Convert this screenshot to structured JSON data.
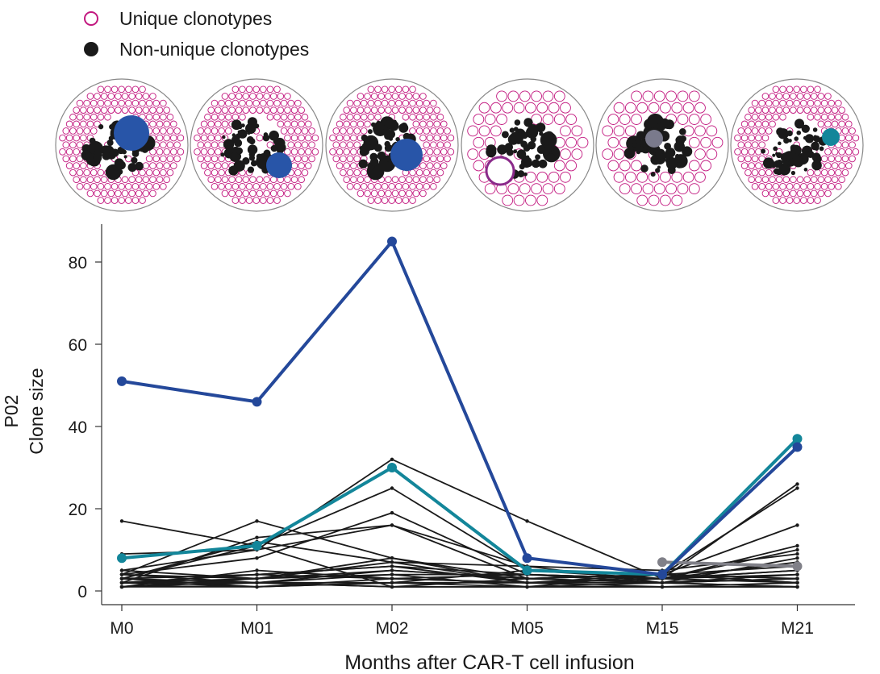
{
  "legend": {
    "items": [
      {
        "label": "Unique clonotypes",
        "marker": "open-circle",
        "color": "#c2187f"
      },
      {
        "label": "Non-unique clonotypes",
        "marker": "filled-circle",
        "color": "#1a1a1a"
      }
    ]
  },
  "bubble_panels": {
    "timepoints": [
      "M0",
      "M01",
      "M02",
      "M05",
      "M15",
      "M21"
    ],
    "highlight_colors": [
      "#2855a8",
      "#2855a8",
      "#2855a8",
      "#ffffff",
      "#7a7a8c",
      "#13869a"
    ]
  },
  "colors": {
    "blue": "#24489a",
    "teal": "#13869a",
    "gray": "#808088",
    "black": "#1a1a1a",
    "unique": "#c2187f"
  },
  "chart_data": {
    "type": "line",
    "xlabel": "Months after CAR-T cell infusion",
    "ylabel": [
      "P02",
      "Clone size"
    ],
    "categories": [
      "M0",
      "M01",
      "M02",
      "M05",
      "M15",
      "M21"
    ],
    "ylim": [
      0,
      88
    ],
    "yticks": [
      0,
      20,
      40,
      60,
      80
    ],
    "highlighted_series": [
      {
        "name": "clone-blue",
        "color": "blue",
        "values": [
          51,
          46,
          85,
          8,
          4,
          35
        ]
      },
      {
        "name": "clone-teal",
        "color": "teal",
        "values": [
          8,
          11,
          30,
          5,
          4,
          37
        ]
      },
      {
        "name": "clone-gray",
        "color": "gray",
        "values": [
          null,
          null,
          null,
          null,
          7,
          6
        ]
      }
    ],
    "background_series": [
      [
        17,
        11,
        1,
        1,
        1,
        1
      ],
      [
        9,
        10,
        32,
        17,
        3,
        26
      ],
      [
        4,
        17,
        8,
        3,
        4,
        25
      ],
      [
        5,
        10,
        16,
        3,
        4,
        16
      ],
      [
        3,
        11,
        25,
        5,
        3,
        11
      ],
      [
        4,
        8,
        19,
        4,
        3,
        10
      ],
      [
        2,
        13,
        16,
        6,
        5,
        9
      ],
      [
        3,
        12,
        7,
        6,
        2,
        8
      ],
      [
        2,
        4,
        6,
        2,
        3,
        7
      ],
      [
        1,
        3,
        5,
        3,
        4,
        6
      ],
      [
        4,
        2,
        4,
        4,
        3,
        5
      ],
      [
        1,
        5,
        3,
        2,
        2,
        4
      ],
      [
        3,
        1,
        2,
        5,
        4,
        3
      ],
      [
        2,
        3,
        7,
        2,
        3,
        2
      ],
      [
        1,
        2,
        1,
        3,
        2,
        1
      ],
      [
        3,
        4,
        3,
        4,
        3,
        4
      ],
      [
        2,
        2,
        5,
        3,
        2,
        3
      ],
      [
        5,
        3,
        8,
        2,
        4,
        2
      ],
      [
        1,
        1,
        2,
        1,
        1,
        1
      ],
      [
        2,
        1,
        3,
        2,
        1,
        2
      ],
      [
        4,
        3,
        4,
        1,
        2,
        3
      ],
      [
        1,
        2,
        2,
        2,
        3,
        5
      ],
      [
        3,
        2,
        1,
        1,
        4,
        2
      ],
      [
        2,
        4,
        6,
        4,
        2,
        1
      ]
    ]
  }
}
